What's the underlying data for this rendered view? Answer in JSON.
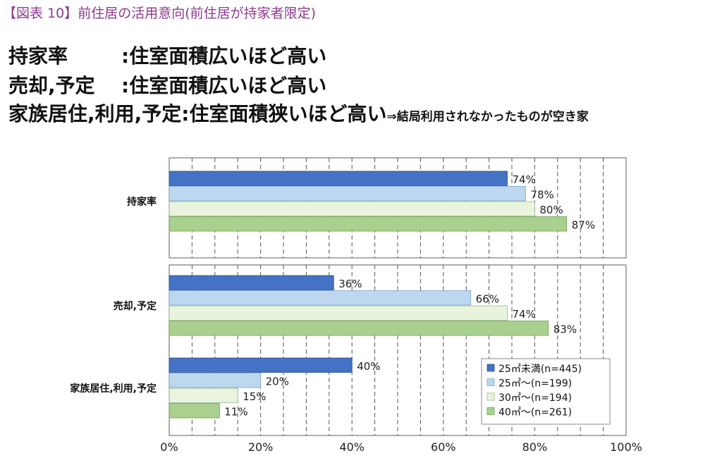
{
  "caption": "【図表 10】前住居の活用意向(前住居が持家者限定)",
  "headlines": [
    {
      "key": "持家率",
      "sep": ":",
      "text": "住室面積広いほど高い",
      "note": ""
    },
    {
      "key": "売却,予定",
      "sep": ":",
      "text": "住室面積広いほど高い",
      "note": ""
    },
    {
      "key": "家族居住,利用,予定",
      "sep": ":",
      "text": "住室面積狭いほど高い",
      "note": "⇒結局利用されなかったものが空き家"
    }
  ],
  "colors": {
    "caption": "#8e3a8e",
    "series": [
      "#4472c4",
      "#bdd7ee",
      "#e9f4de",
      "#a9d08e"
    ],
    "border": [
      "#2f4f8f",
      "#7aa6d1",
      "#9ab88a",
      "#6f9f56"
    ]
  },
  "chart_data": {
    "type": "bar",
    "orientation": "horizontal",
    "categories": [
      "持家率",
      "売却,予定",
      "家族居住,利用,予定"
    ],
    "series": [
      {
        "name": "25㎡未満(n=445)",
        "values": [
          74,
          36,
          40
        ],
        "labels": [
          "74%",
          "36%",
          "40%"
        ]
      },
      {
        "name": "25㎡～(n=199)",
        "values": [
          78,
          66,
          20
        ],
        "labels": [
          "78%",
          "66%",
          "20%"
        ]
      },
      {
        "name": "30㎡～(n=194)",
        "values": [
          80,
          74,
          15
        ],
        "labels": [
          "80%",
          "74%",
          "15%"
        ]
      },
      {
        "name": "40㎡～(n=261)",
        "values": [
          87,
          83,
          11
        ],
        "labels": [
          "87%",
          "83%",
          "11%"
        ]
      }
    ],
    "xlim": [
      0,
      100
    ],
    "xticks": [
      "0%",
      "20%",
      "40%",
      "60%",
      "80%",
      "100%"
    ],
    "grid": "vertical dashed every 5%",
    "legend": "bottom-right"
  }
}
